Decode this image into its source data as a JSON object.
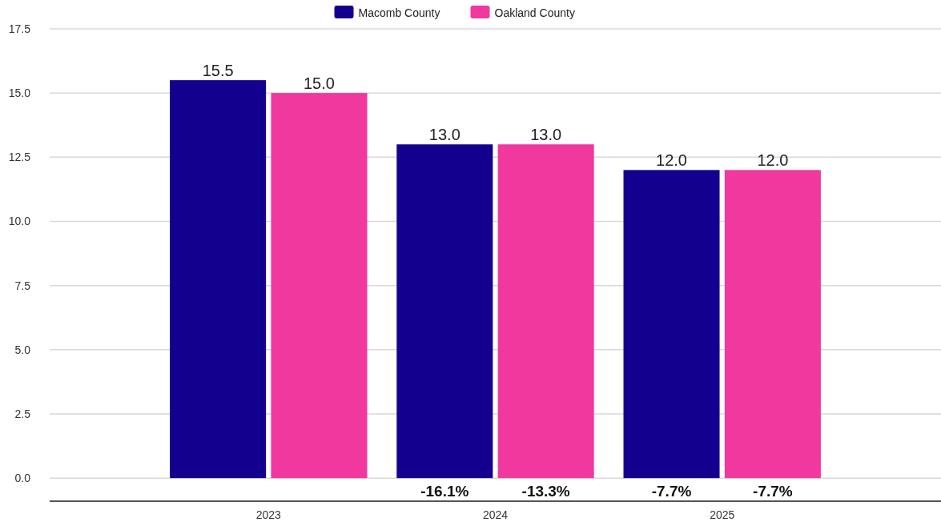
{
  "chart_data": {
    "type": "bar",
    "categories": [
      "2023",
      "2024",
      "2025"
    ],
    "series": [
      {
        "name": "Macomb County",
        "color": "#14008f",
        "values": [
          15.5,
          13.0,
          12.0
        ],
        "value_labels": [
          "15.5",
          "13.0",
          "12.0"
        ]
      },
      {
        "name": "Oakland County",
        "color": "#f0389e",
        "values": [
          15.0,
          13.0,
          12.0
        ],
        "value_labels": [
          "15.0",
          "13.0",
          "12.0"
        ]
      }
    ],
    "ylim": [
      -0.9,
      17.5
    ],
    "yticks": [
      {
        "value": 0,
        "label": "0.0"
      },
      {
        "value": 2.5,
        "label": "2.5"
      },
      {
        "value": 5,
        "label": "5.0"
      },
      {
        "value": 7.5,
        "label": "7.5"
      },
      {
        "value": 10,
        "label": "10.0"
      },
      {
        "value": 12.5,
        "label": "12.5"
      },
      {
        "value": 15,
        "label": "15.0"
      },
      {
        "value": 17.5,
        "label": "17.5"
      }
    ],
    "grid": "y",
    "legend": "top",
    "annotations": [
      {
        "text": "-16.1%",
        "x": "2024",
        "y": 0
      },
      {
        "text": "-13.3%",
        "x": "2024",
        "y": 0
      },
      {
        "text": "-7.7%",
        "x": "2025",
        "y": 0
      },
      {
        "text": "-7.7%",
        "x": "2025",
        "y": 0
      }
    ]
  }
}
